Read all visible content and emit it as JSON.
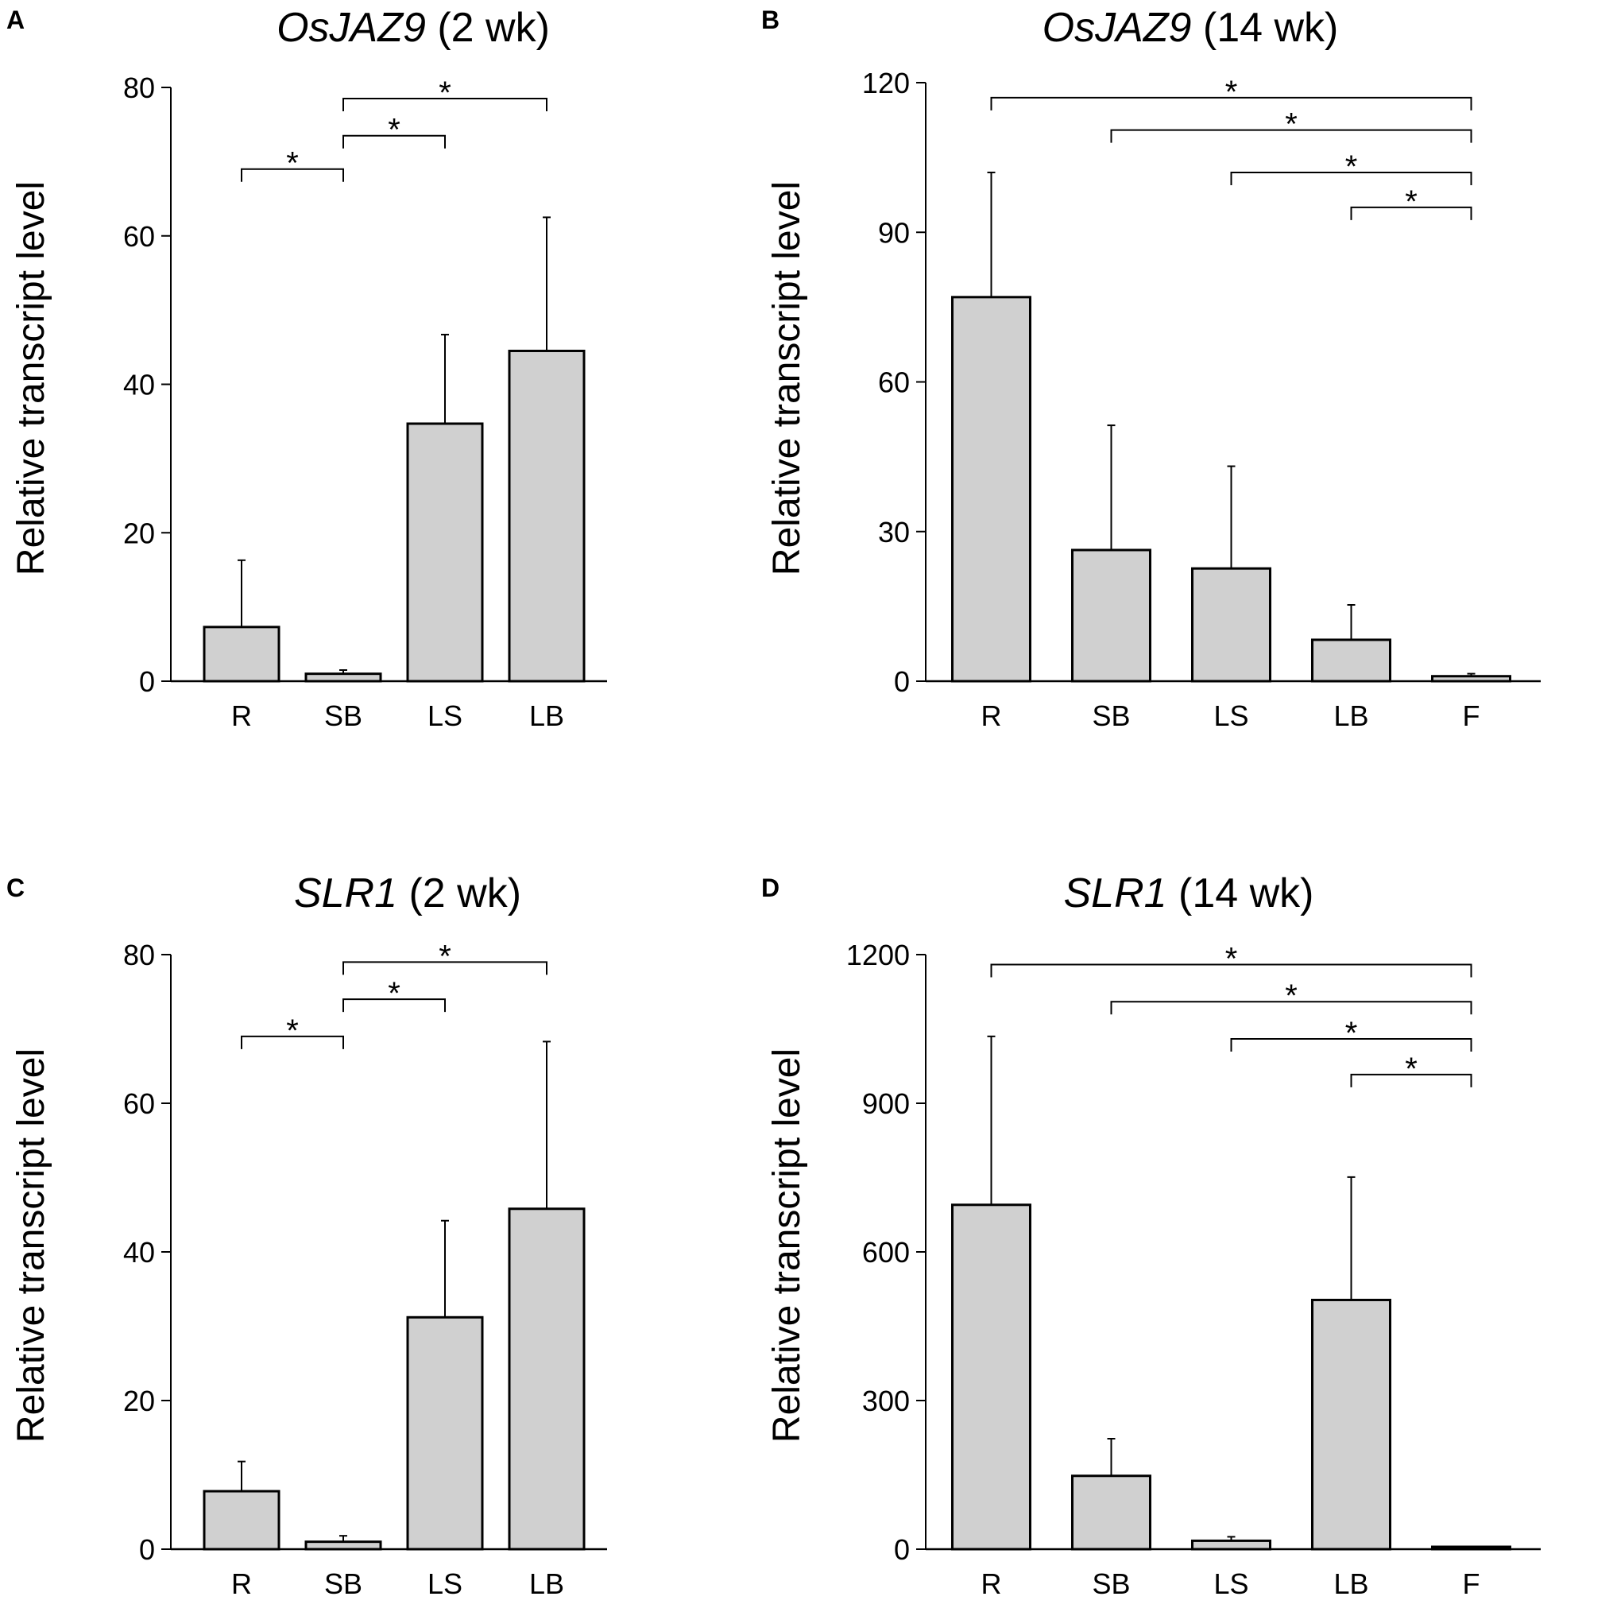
{
  "figure": {
    "colors": {
      "bar_fill": "#d0d0d0",
      "stroke": "#000000",
      "background": "#ffffff"
    }
  },
  "chart_data": [
    {
      "panel_label": "A",
      "type": "bar",
      "title": {
        "gene": "OsJAZ9",
        "suffix": " (2 wk)"
      },
      "ylabel": "Relative transcript level",
      "xlabel": "",
      "categories": [
        "R",
        "SB",
        "LS",
        "LB"
      ],
      "values": [
        7.3,
        1.0,
        34.7,
        44.5
      ],
      "errors": [
        9.0,
        0.5,
        12.0,
        18.0
      ],
      "ylim": [
        0,
        80
      ],
      "yticks": [
        0,
        20,
        40,
        60,
        80
      ],
      "significance": [
        {
          "from": "R",
          "to": "SB",
          "y": 69,
          "label": "*"
        },
        {
          "from": "SB",
          "to": "LS",
          "y": 73.5,
          "label": "*"
        },
        {
          "from": "SB",
          "to": "LB",
          "y": 78.5,
          "label": "*"
        }
      ]
    },
    {
      "panel_label": "B",
      "type": "bar",
      "title": {
        "gene": "OsJAZ9",
        "suffix": " (14 wk)"
      },
      "ylabel": "Relative transcript level",
      "xlabel": "",
      "categories": [
        "R",
        "SB",
        "LS",
        "LB",
        "F"
      ],
      "values": [
        77,
        26.3,
        22.6,
        8.3,
        1.0
      ],
      "errors": [
        25,
        25,
        20.5,
        7.0,
        0.5
      ],
      "ylim": [
        0,
        120
      ],
      "yticks": [
        0,
        30,
        60,
        90,
        120
      ],
      "significance": [
        {
          "from": "R",
          "to": "F",
          "y": 117,
          "label": "*"
        },
        {
          "from": "SB",
          "to": "F",
          "y": 110.5,
          "label": "*"
        },
        {
          "from": "LS",
          "to": "F",
          "y": 102,
          "label": "*"
        },
        {
          "from": "LB",
          "to": "F",
          "y": 95,
          "label": "*"
        }
      ]
    },
    {
      "panel_label": "C",
      "type": "bar",
      "title": {
        "gene": "SLR1",
        "suffix": " (2 wk)"
      },
      "ylabel": "Relative transcript level",
      "xlabel": "",
      "categories": [
        "R",
        "SB",
        "LS",
        "LB"
      ],
      "values": [
        7.8,
        1.0,
        31.2,
        45.8
      ],
      "errors": [
        4.0,
        0.8,
        13.0,
        22.5
      ],
      "ylim": [
        0,
        80
      ],
      "yticks": [
        0,
        20,
        40,
        60,
        80
      ],
      "significance": [
        {
          "from": "R",
          "to": "SB",
          "y": 69,
          "label": "*"
        },
        {
          "from": "SB",
          "to": "LS",
          "y": 74,
          "label": "*"
        },
        {
          "from": "SB",
          "to": "LB",
          "y": 79,
          "label": "*"
        }
      ]
    },
    {
      "panel_label": "D",
      "type": "bar",
      "title": {
        "gene": "SLR1",
        "suffix": " (14 wk)"
      },
      "ylabel": "Relative transcript level",
      "xlabel": "",
      "categories": [
        "R",
        "SB",
        "LS",
        "LB",
        "F"
      ],
      "values": [
        695,
        148,
        17,
        503,
        2
      ],
      "errors": [
        340,
        75,
        8,
        248,
        1
      ],
      "ylim": [
        0,
        1200
      ],
      "yticks": [
        0,
        300,
        600,
        900,
        1200
      ],
      "significance": [
        {
          "from": "R",
          "to": "F",
          "y": 1180,
          "label": "*"
        },
        {
          "from": "SB",
          "to": "F",
          "y": 1105,
          "label": "*"
        },
        {
          "from": "LS",
          "to": "F",
          "y": 1030,
          "label": "*"
        },
        {
          "from": "LB",
          "to": "F",
          "y": 958,
          "label": "*"
        }
      ]
    }
  ]
}
